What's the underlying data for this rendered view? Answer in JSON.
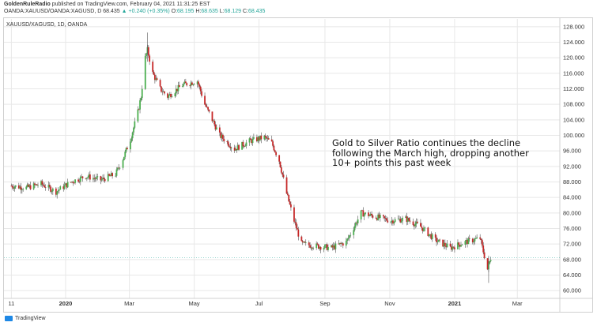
{
  "header": {
    "author": "GoldenRuleRadio",
    "published": "published on TradingView.com, February 04, 2021 11:31:25 EST",
    "symbol": "OANDA:XAUUSD/OANDA:XAGUSD, D",
    "last": "68.435",
    "change": "▲ +0.240 (+0.35%)",
    "o_label": "O:",
    "o": "68.195",
    "h_label": "H:",
    "h": "68.635",
    "l_label": "L:",
    "l": "68.129",
    "c_label": "C:",
    "c": "68.435"
  },
  "footer": {
    "brand": "TradingView"
  },
  "colors": {
    "up": "#26a69a",
    "down": "#ef5350",
    "candle_up": "#4caf50",
    "candle_down": "#c62828",
    "grid": "#e8e8e8"
  },
  "chart_data": {
    "type": "candlestick",
    "title": "XAUUSD/XAGUSD, 1D, OANDA",
    "annotation": [
      "Gold to Silver Ratio continues the decline",
      "following the March high, dropping another",
      "10+ points this past week"
    ],
    "ylim": [
      58,
      130
    ],
    "y_ticks": [
      "128.000",
      "124.000",
      "120.000",
      "116.000",
      "112.000",
      "108.000",
      "104.000",
      "100.000",
      "96.000",
      "92.000",
      "88.000",
      "84.000",
      "80.000",
      "76.000",
      "72.000",
      "68.000",
      "64.000",
      "60.000"
    ],
    "x_ticks": [
      "11",
      "2020",
      "Mar",
      "May",
      "Jul",
      "Sep",
      "Nov",
      "2021",
      "Mar"
    ],
    "series": [
      {
        "name": "XAUUSD/XAGUSD",
        "dates": [
          "2019-11-11",
          "2019-11-25",
          "2019-12-09",
          "2019-12-23",
          "2020-01-06",
          "2020-01-20",
          "2020-02-03",
          "2020-02-17",
          "2020-02-24",
          "2020-03-02",
          "2020-03-09",
          "2020-03-12",
          "2020-03-16",
          "2020-03-18",
          "2020-03-23",
          "2020-03-30",
          "2020-04-06",
          "2020-04-20",
          "2020-05-04",
          "2020-05-11",
          "2020-05-18",
          "2020-05-25",
          "2020-06-08",
          "2020-06-22",
          "2020-07-06",
          "2020-07-13",
          "2020-07-20",
          "2020-07-27",
          "2020-08-03",
          "2020-08-10",
          "2020-08-24",
          "2020-09-07",
          "2020-09-21",
          "2020-10-05",
          "2020-10-19",
          "2020-11-02",
          "2020-11-16",
          "2020-11-30",
          "2020-12-14",
          "2020-12-28",
          "2021-01-11",
          "2021-01-25",
          "2021-02-01",
          "2021-02-04"
        ],
        "close": [
          87.0,
          86.5,
          87.5,
          85.5,
          88.0,
          89.5,
          88.5,
          90.0,
          94.0,
          99.0,
          106.0,
          110.0,
          120.0,
          122.0,
          116.0,
          112.0,
          110.0,
          113.0,
          114.0,
          108.0,
          104.0,
          100.0,
          96.5,
          98.5,
          99.5,
          98.0,
          93.5,
          85.0,
          78.0,
          72.0,
          71.5,
          71.0,
          72.5,
          80.0,
          79.0,
          78.0,
          78.5,
          76.5,
          73.0,
          71.0,
          72.5,
          73.5,
          65.5,
          68.4
        ]
      }
    ]
  }
}
